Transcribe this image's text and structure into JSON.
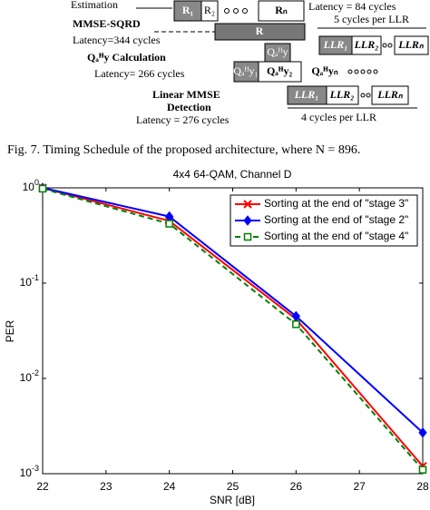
{
  "diagram": {
    "labels": [
      "Estimation",
      "MMSE-SQRD",
      "Latency=344 cycles",
      "Qₐᴴy Calculation",
      "Latency= 266 cycles",
      "Linear MMSE",
      "Detection",
      "Latency = 276 cycles",
      "Latency = 84 cycles",
      "5 cycles per LLR",
      "4 cycles per LLR"
    ],
    "blocks": [
      "R₁",
      "R₂",
      "Rₙ",
      "R",
      "LLR₁",
      "LLR₂",
      "LLRₙ",
      "Qₐᴴy",
      "Qₐᴴy₁",
      "Qₐᴴy₂",
      "Qₐᴴyₙ",
      "LLR₁",
      "LLR₂",
      "LLRₙ"
    ]
  },
  "caption": "Fig. 7.   Timing Schedule of the proposed architecture, where N = 896.",
  "chart_data": {
    "type": "line",
    "title": "4x4 64-QAM, Channel D",
    "x_label": "SNR [dB]",
    "y_label": "PER",
    "x": [
      22,
      24,
      26,
      28
    ],
    "series": [
      {
        "name": "Sorting at the end of \"stage 3\"",
        "color": "#ff0000",
        "marker": "x",
        "dash": false,
        "values": [
          1.0,
          0.45,
          0.042,
          0.0012
        ]
      },
      {
        "name": "Sorting at the end of \"stage 2\"",
        "color": "#0000ff",
        "marker": "diamond",
        "dash": false,
        "values": [
          1.0,
          0.5,
          0.045,
          0.0027
        ]
      },
      {
        "name": "Sorting at the end of \"stage 4\"",
        "color": "#008000",
        "marker": "square",
        "dash": true,
        "values": [
          0.98,
          0.42,
          0.037,
          0.0011
        ]
      }
    ],
    "xlim": [
      22,
      28
    ],
    "xticks": [
      22,
      23,
      24,
      25,
      26,
      27,
      28
    ],
    "ylim": [
      0.001,
      1
    ],
    "yscale": "log",
    "yticks": [
      {
        "value": 1,
        "label": "10^0"
      },
      {
        "value": 0.1,
        "label": "10^-1"
      },
      {
        "value": 0.01,
        "label": "10^-2"
      },
      {
        "value": 0.001,
        "label": "10^-3"
      }
    ],
    "grid": false,
    "legend": "upper right"
  }
}
